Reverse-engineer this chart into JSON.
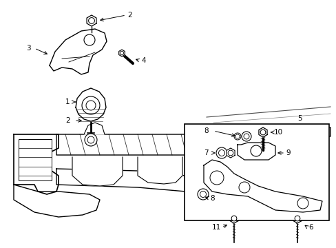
{
  "bg_color": "#ffffff",
  "line_color": "#000000",
  "fig_width": 4.89,
  "fig_height": 3.6,
  "dpi": 100,
  "font_size": 7.5
}
